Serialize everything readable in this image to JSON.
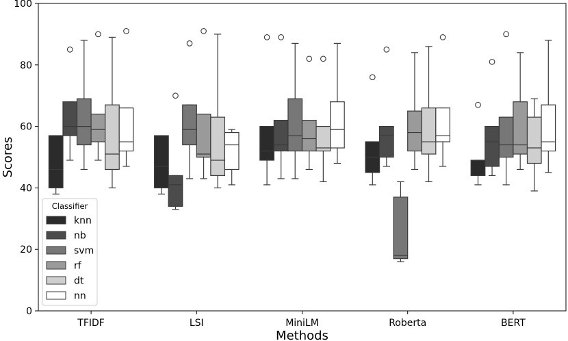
{
  "chart_data": {
    "type": "boxplot",
    "xlabel": "Methods",
    "ylabel": "Scores",
    "ylim": [
      0,
      100
    ],
    "yticks": [
      0,
      20,
      40,
      60,
      80,
      100
    ],
    "grid": false,
    "categories": [
      "TFIDF",
      "LSI",
      "MiniLM",
      "Roberta",
      "BERT"
    ],
    "legend": {
      "title": "Classifier",
      "placement": "lower-left",
      "entries": [
        "knn",
        "nb",
        "svm",
        "rf",
        "dt",
        "nn"
      ]
    },
    "series": [
      {
        "name": "knn",
        "color": "#2b2b2b",
        "boxes": [
          {
            "whislo": 38,
            "q1": 40,
            "med": 46,
            "q3": 57,
            "whishi": 57,
            "fliers": []
          },
          {
            "whislo": 38,
            "q1": 40,
            "med": 47,
            "q3": 57,
            "whishi": 57,
            "fliers": []
          },
          {
            "whislo": 41,
            "q1": 49,
            "med": 52,
            "q3": 60,
            "whishi": 60,
            "fliers": [
              89
            ]
          },
          {
            "whislo": 41,
            "q1": 45,
            "med": 50,
            "q3": 55,
            "whishi": 55,
            "fliers": [
              76
            ]
          },
          {
            "whislo": 41,
            "q1": 44,
            "med": 44,
            "q3": 49,
            "whishi": 49,
            "fliers": [
              67
            ]
          }
        ]
      },
      {
        "name": "nb",
        "color": "#4b4b4b",
        "boxes": [
          {
            "whislo": 49,
            "q1": 57,
            "med": 60,
            "q3": 68,
            "whishi": 68,
            "fliers": [
              85
            ]
          },
          {
            "whislo": 33,
            "q1": 34,
            "med": 41,
            "q3": 44,
            "whishi": 44,
            "fliers": [
              70
            ]
          },
          {
            "whislo": 43,
            "q1": 52,
            "med": 54,
            "q3": 62,
            "whishi": 62,
            "fliers": [
              89
            ]
          },
          {
            "whislo": 47,
            "q1": 50,
            "med": 57,
            "q3": 60,
            "whishi": 60,
            "fliers": [
              85
            ]
          },
          {
            "whislo": 44,
            "q1": 47,
            "med": 55,
            "q3": 60,
            "whishi": 60,
            "fliers": [
              81
            ]
          }
        ]
      },
      {
        "name": "svm",
        "color": "#777777",
        "boxes": [
          {
            "whislo": 46,
            "q1": 54,
            "med": 60,
            "q3": 69,
            "whishi": 88,
            "fliers": []
          },
          {
            "whislo": 43,
            "q1": 54,
            "med": 59,
            "q3": 67,
            "whishi": 67,
            "fliers": [
              87
            ]
          },
          {
            "whislo": 43,
            "q1": 52,
            "med": 57,
            "q3": 69,
            "whishi": 87,
            "fliers": []
          },
          {
            "whislo": 16,
            "q1": 17,
            "med": 18,
            "q3": 37,
            "whishi": 42,
            "fliers": []
          },
          {
            "whislo": 41,
            "q1": 50,
            "med": 54,
            "q3": 63,
            "whishi": 63,
            "fliers": [
              90
            ]
          }
        ]
      },
      {
        "name": "rf",
        "color": "#9a9a9a",
        "boxes": [
          {
            "whislo": 49,
            "q1": 55,
            "med": 59,
            "q3": 64,
            "whishi": 64,
            "fliers": [
              90
            ]
          },
          {
            "whislo": 43,
            "q1": 50,
            "med": 51,
            "q3": 64,
            "whishi": 64,
            "fliers": [
              91
            ]
          },
          {
            "whislo": 46,
            "q1": 52,
            "med": 56,
            "q3": 62,
            "whishi": 62,
            "fliers": [
              82
            ]
          },
          {
            "whislo": 46,
            "q1": 52,
            "med": 58,
            "q3": 65,
            "whishi": 84,
            "fliers": []
          },
          {
            "whislo": 46,
            "q1": 51,
            "med": 54,
            "q3": 68,
            "whishi": 84,
            "fliers": []
          }
        ]
      },
      {
        "name": "dt",
        "color": "#cfcfcf",
        "boxes": [
          {
            "whislo": 40,
            "q1": 46,
            "med": 51,
            "q3": 67,
            "whishi": 89,
            "fliers": []
          },
          {
            "whislo": 40,
            "q1": 44,
            "med": 49,
            "q3": 63,
            "whishi": 90,
            "fliers": []
          },
          {
            "whislo": 42,
            "q1": 52,
            "med": 53,
            "q3": 60,
            "whishi": 60,
            "fliers": [
              82
            ]
          },
          {
            "whislo": 42,
            "q1": 51,
            "med": 55,
            "q3": 66,
            "whishi": 86,
            "fliers": []
          },
          {
            "whislo": 39,
            "q1": 48,
            "med": 53,
            "q3": 63,
            "whishi": 69,
            "fliers": []
          }
        ]
      },
      {
        "name": "nn",
        "color": "#ffffff",
        "boxes": [
          {
            "whislo": 47,
            "q1": 52,
            "med": 55,
            "q3": 66,
            "whishi": 66,
            "fliers": [
              91
            ]
          },
          {
            "whislo": 41,
            "q1": 46,
            "med": 54,
            "q3": 58,
            "whishi": 59,
            "fliers": []
          },
          {
            "whislo": 48,
            "q1": 53,
            "med": 59,
            "q3": 68,
            "whishi": 87,
            "fliers": []
          },
          {
            "whislo": 47,
            "q1": 55,
            "med": 57,
            "q3": 66,
            "whishi": 66,
            "fliers": [
              89
            ]
          },
          {
            "whislo": 45,
            "q1": 52,
            "med": 55,
            "q3": 67,
            "whishi": 88,
            "fliers": []
          }
        ]
      }
    ]
  }
}
